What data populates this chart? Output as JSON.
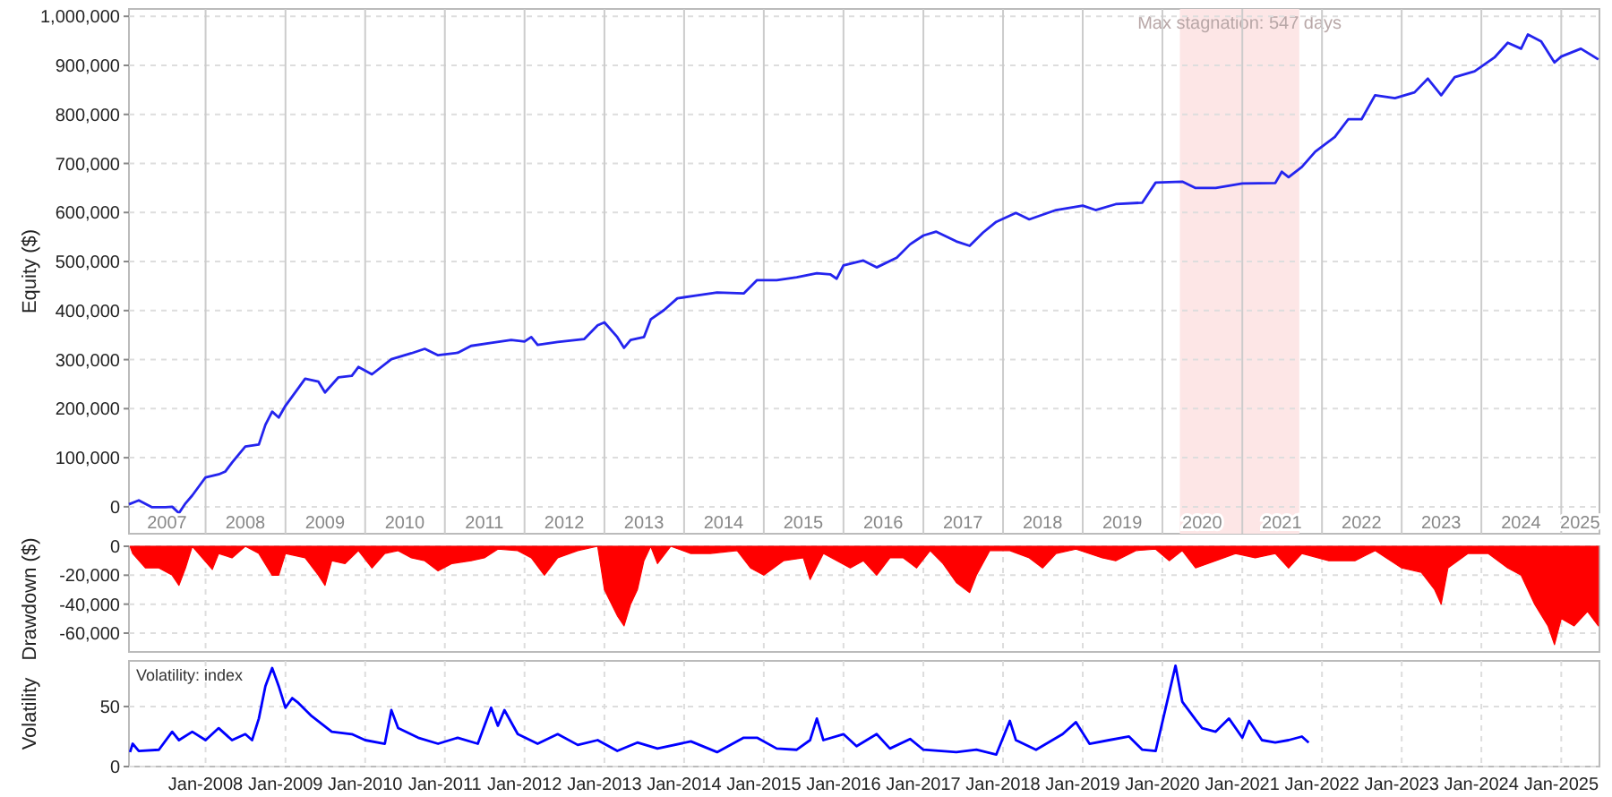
{
  "chart_data": [
    {
      "type": "line",
      "ylabel": "Equity ($)",
      "xlim": [
        "2007-01-15",
        "2025-06-25"
      ],
      "ylim": [
        -55000,
        1015000
      ],
      "yticks": [
        {
          "value": 0,
          "label": "0"
        },
        {
          "value": 100000,
          "label": "100,000"
        },
        {
          "value": 200000,
          "label": "200,000"
        },
        {
          "value": 300000,
          "label": "300,000"
        },
        {
          "value": 400000,
          "label": "400,000"
        },
        {
          "value": 500000,
          "label": "500,000"
        },
        {
          "value": 600000,
          "label": "600,000"
        },
        {
          "value": 700000,
          "label": "700,000"
        },
        {
          "value": 800000,
          "label": "800,000"
        },
        {
          "value": 900000,
          "label": "900,000"
        },
        {
          "value": 1000000,
          "label": "1,000,000"
        }
      ],
      "xticks": [
        {
          "value": "2008-01-01",
          "label": null
        },
        {
          "value": "2009-01-01",
          "label": null
        },
        {
          "value": "2010-01-01",
          "label": null
        },
        {
          "value": "2011-01-01",
          "label": null
        },
        {
          "value": "2012-01-01",
          "label": null
        },
        {
          "value": "2013-01-01",
          "label": null
        },
        {
          "value": "2014-01-01",
          "label": null
        },
        {
          "value": "2015-01-01",
          "label": null
        },
        {
          "value": "2016-01-01",
          "label": null
        },
        {
          "value": "2017-01-01",
          "label": null
        },
        {
          "value": "2018-01-01",
          "label": null
        },
        {
          "value": "2019-01-01",
          "label": null
        },
        {
          "value": "2020-01-01",
          "label": null
        },
        {
          "value": "2021-01-01",
          "label": null
        },
        {
          "value": "2022-01-01",
          "label": null
        },
        {
          "value": "2023-01-01",
          "label": null
        },
        {
          "value": "2024-01-01",
          "label": null
        },
        {
          "value": "2025-01-01",
          "label": null
        },
        {
          "value": "2007-07-08",
          "label": "2007"
        },
        {
          "value": "2008-07-01",
          "label": "2008"
        },
        {
          "value": "2009-07-01",
          "label": "2009"
        },
        {
          "value": "2010-07-01",
          "label": "2010"
        },
        {
          "value": "2011-07-01",
          "label": "2011"
        },
        {
          "value": "2012-07-01",
          "label": "2012"
        },
        {
          "value": "2013-07-01",
          "label": "2013"
        },
        {
          "value": "2014-07-01",
          "label": "2014"
        },
        {
          "value": "2015-07-01",
          "label": "2015"
        },
        {
          "value": "2016-07-01",
          "label": "2016"
        },
        {
          "value": "2017-07-01",
          "label": "2017"
        },
        {
          "value": "2018-07-01",
          "label": "2018"
        },
        {
          "value": "2019-07-01",
          "label": "2019"
        },
        {
          "value": "2020-07-01",
          "label": "2020"
        },
        {
          "value": "2021-07-01",
          "label": "2021"
        },
        {
          "value": "2022-07-01",
          "label": "2022"
        },
        {
          "value": "2023-07-01",
          "label": "2023"
        },
        {
          "value": "2024-07-01",
          "label": "2024"
        },
        {
          "value": "2025-03-28",
          "label": "2025"
        }
      ],
      "grid": true,
      "bands": [
        {
          "axis": "x",
          "from": "2020-03-21",
          "to": "2021-09-19",
          "label": "Max stagnation: 547 days",
          "color": "#fde6e6"
        }
      ],
      "series": [
        {
          "color": "#2424ee",
          "x": [
            "2007-01-15",
            "2007-03-01",
            "2007-05-01",
            "2007-07-01",
            "2007-08-01",
            "2007-09-01",
            "2007-10-01",
            "2007-11-01",
            "2008-01-01",
            "2008-03-01",
            "2008-04-01",
            "2008-05-01",
            "2008-07-01",
            "2008-09-01",
            "2008-10-01",
            "2008-11-01",
            "2008-12-01",
            "2009-01-01",
            "2009-03-01",
            "2009-04-01",
            "2009-06-01",
            "2009-07-01",
            "2009-09-01",
            "2009-11-01",
            "2009-12-01",
            "2010-02-01",
            "2010-05-01",
            "2010-08-01",
            "2010-10-01",
            "2010-12-01",
            "2011-03-01",
            "2011-05-01",
            "2011-08-01",
            "2011-11-01",
            "2012-01-01",
            "2012-02-01",
            "2012-03-01",
            "2012-06-01",
            "2012-10-01",
            "2012-12-01",
            "2013-01-01",
            "2013-03-01",
            "2013-04-01",
            "2013-05-01",
            "2013-07-01",
            "2013-08-01",
            "2013-10-01",
            "2013-12-01",
            "2014-03-01",
            "2014-06-01",
            "2014-10-01",
            "2014-12-01",
            "2015-03-01",
            "2015-06-01",
            "2015-09-01",
            "2015-11-01",
            "2015-12-01",
            "2016-01-01",
            "2016-04-01",
            "2016-06-01",
            "2016-09-01",
            "2016-11-01",
            "2017-01-01",
            "2017-03-01",
            "2017-06-01",
            "2017-08-01",
            "2017-10-01",
            "2017-12-01",
            "2018-03-01",
            "2018-05-01",
            "2018-09-01",
            "2019-01-01",
            "2019-03-01",
            "2019-06-01",
            "2019-10-01",
            "2019-12-01",
            "2020-04-01",
            "2020-06-01",
            "2020-09-01",
            "2021-01-01",
            "2021-06-01",
            "2021-07-01",
            "2021-08-01",
            "2021-10-01",
            "2021-12-01",
            "2022-03-01",
            "2022-05-01",
            "2022-07-01",
            "2022-09-01",
            "2022-12-01",
            "2023-03-01",
            "2023-05-01",
            "2023-07-01",
            "2023-09-01",
            "2023-12-01",
            "2024-03-01",
            "2024-05-01",
            "2024-07-01",
            "2024-08-01",
            "2024-10-01",
            "2024-12-01",
            "2025-01-01",
            "2025-04-01",
            "2025-06-20"
          ],
          "values": [
            5000,
            13000,
            -1000,
            -1000,
            0,
            -13000,
            7000,
            23000,
            60000,
            66000,
            72000,
            90000,
            123000,
            127000,
            167000,
            194000,
            182000,
            206000,
            242000,
            261000,
            255000,
            233000,
            264000,
            267000,
            285000,
            270000,
            301000,
            313000,
            322000,
            309000,
            314000,
            328000,
            334000,
            340000,
            337000,
            346000,
            330000,
            336000,
            342000,
            370000,
            376000,
            346000,
            324000,
            340000,
            346000,
            382000,
            401000,
            425000,
            431000,
            437000,
            435000,
            462000,
            462000,
            468000,
            476000,
            474000,
            465000,
            492000,
            502000,
            488000,
            508000,
            535000,
            553000,
            561000,
            541000,
            532000,
            559000,
            581000,
            599000,
            586000,
            605000,
            614000,
            605000,
            617000,
            620000,
            661000,
            663000,
            650000,
            650000,
            659000,
            660000,
            683000,
            672000,
            693000,
            724000,
            754000,
            790000,
            790000,
            839000,
            833000,
            845000,
            873000,
            839000,
            876000,
            888000,
            916000,
            946000,
            934000,
            963000,
            949000,
            906000,
            918000,
            934000,
            912000
          ]
        }
      ]
    },
    {
      "type": "area",
      "ylabel": "Drawdown ($)",
      "xlim": [
        "2007-01-15",
        "2025-06-25"
      ],
      "ylim": [
        -73000,
        0
      ],
      "yticks": [
        {
          "value": 0,
          "label": "0"
        },
        {
          "value": -20000,
          "label": "-20,000"
        },
        {
          "value": -40000,
          "label": "-40,000"
        },
        {
          "value": -60000,
          "label": "-60,000"
        }
      ],
      "xticks": [
        {
          "value": "2008-01-01",
          "label": null
        },
        {
          "value": "2009-01-01",
          "label": null
        },
        {
          "value": "2010-01-01",
          "label": null
        },
        {
          "value": "2011-01-01",
          "label": null
        },
        {
          "value": "2012-01-01",
          "label": null
        },
        {
          "value": "2013-01-01",
          "label": null
        },
        {
          "value": "2014-01-01",
          "label": null
        },
        {
          "value": "2015-01-01",
          "label": null
        },
        {
          "value": "2016-01-01",
          "label": null
        },
        {
          "value": "2017-01-01",
          "label": null
        },
        {
          "value": "2018-01-01",
          "label": null
        },
        {
          "value": "2019-01-01",
          "label": null
        },
        {
          "value": "2020-01-01",
          "label": null
        },
        {
          "value": "2021-01-01",
          "label": null
        },
        {
          "value": "2022-01-01",
          "label": null
        },
        {
          "value": "2023-01-01",
          "label": null
        },
        {
          "value": "2024-01-01",
          "label": null
        },
        {
          "value": "2025-01-01",
          "label": null
        }
      ],
      "tick_labels": "y",
      "grid": true,
      "series": [
        {
          "color": "#ff0000",
          "x": [
            "2007-01-20",
            "2007-02-01",
            "2007-04-01",
            "2007-06-01",
            "2007-08-01",
            "2007-09-01",
            "2007-10-01",
            "2007-11-01",
            "2008-02-01",
            "2008-03-01",
            "2008-05-01",
            "2008-07-01",
            "2008-09-01",
            "2008-11-01",
            "2008-12-01",
            "2009-01-01",
            "2009-04-01",
            "2009-06-01",
            "2009-07-01",
            "2009-08-01",
            "2009-10-01",
            "2009-12-01",
            "2010-02-01",
            "2010-04-01",
            "2010-06-01",
            "2010-08-01",
            "2010-10-01",
            "2010-12-01",
            "2011-02-01",
            "2011-05-01",
            "2011-07-01",
            "2011-09-01",
            "2011-12-01",
            "2012-02-01",
            "2012-04-01",
            "2012-06-01",
            "2012-09-01",
            "2012-12-01",
            "2013-01-01",
            "2013-03-01",
            "2013-04-01",
            "2013-05-01",
            "2013-06-01",
            "2013-07-01",
            "2013-08-01",
            "2013-09-01",
            "2013-11-01",
            "2014-02-01",
            "2014-05-01",
            "2014-09-01",
            "2014-11-01",
            "2015-01-01",
            "2015-04-01",
            "2015-07-01",
            "2015-08-01",
            "2015-10-01",
            "2016-02-01",
            "2016-04-01",
            "2016-06-01",
            "2016-08-01",
            "2016-10-01",
            "2016-12-01",
            "2017-02-01",
            "2017-04-01",
            "2017-06-01",
            "2017-08-01",
            "2017-09-01",
            "2017-11-01",
            "2018-02-01",
            "2018-05-01",
            "2018-07-01",
            "2018-09-01",
            "2018-12-01",
            "2019-04-01",
            "2019-06-01",
            "2019-09-01",
            "2019-12-01",
            "2020-02-01",
            "2020-04-01",
            "2020-06-01",
            "2020-09-01",
            "2020-12-01",
            "2021-03-01",
            "2021-06-01",
            "2021-08-01",
            "2021-10-01",
            "2022-02-01",
            "2022-06-01",
            "2022-09-01",
            "2023-01-01",
            "2023-04-01",
            "2023-06-01",
            "2023-07-01",
            "2023-08-01",
            "2023-11-01",
            "2024-02-01",
            "2024-05-01",
            "2024-07-01",
            "2024-09-01",
            "2024-11-01",
            "2024-12-01",
            "2025-01-01",
            "2025-03-01",
            "2025-05-01",
            "2025-06-20"
          ],
          "values": [
            0,
            -5000,
            -15000,
            -15000,
            -20000,
            -27000,
            -15000,
            0,
            -16000,
            -5000,
            -8000,
            0,
            -5000,
            -20000,
            -20000,
            -5000,
            -8000,
            -20000,
            -27000,
            -10000,
            -12000,
            -3000,
            -15000,
            -5000,
            -3000,
            -8000,
            -10000,
            -17000,
            -12000,
            -10000,
            -8000,
            -2000,
            -3000,
            -8000,
            -20000,
            -8000,
            -3000,
            0,
            -30000,
            -48000,
            -55000,
            -40000,
            -30000,
            -10000,
            0,
            -12000,
            0,
            -5000,
            -5000,
            -3000,
            -15000,
            -20000,
            -10000,
            -8000,
            -23000,
            -5000,
            -15000,
            -10000,
            -20000,
            -8000,
            -8000,
            -15000,
            -3000,
            -12000,
            -25000,
            -32000,
            -20000,
            -3000,
            -3000,
            -8000,
            -15000,
            -5000,
            -2000,
            -8000,
            -10000,
            -3000,
            -2000,
            -10000,
            -3000,
            -15000,
            -10000,
            -5000,
            -8000,
            -5000,
            -15000,
            -5000,
            -10000,
            -10000,
            -3000,
            -15000,
            -18000,
            -30000,
            -40000,
            -15000,
            -5000,
            -5000,
            -15000,
            -20000,
            -40000,
            -55000,
            -68000,
            -50000,
            -55000,
            -45000,
            -55000
          ]
        }
      ]
    },
    {
      "type": "line",
      "ylabel": "Volatility",
      "xlim": [
        "2007-01-15",
        "2025-06-25"
      ],
      "ylim": [
        0,
        88
      ],
      "yticks": [
        {
          "value": 0,
          "label": "0"
        },
        {
          "value": 50,
          "label": "50"
        }
      ],
      "xticks": [
        {
          "value": "2008-01-01",
          "label": "Jan-2008"
        },
        {
          "value": "2009-01-01",
          "label": "Jan-2009"
        },
        {
          "value": "2010-01-01",
          "label": "Jan-2010"
        },
        {
          "value": "2011-01-01",
          "label": "Jan-2011"
        },
        {
          "value": "2012-01-01",
          "label": "Jan-2012"
        },
        {
          "value": "2013-01-01",
          "label": "Jan-2013"
        },
        {
          "value": "2014-01-01",
          "label": "Jan-2014"
        },
        {
          "value": "2015-01-01",
          "label": "Jan-2015"
        },
        {
          "value": "2016-01-01",
          "label": "Jan-2016"
        },
        {
          "value": "2017-01-01",
          "label": "Jan-2017"
        },
        {
          "value": "2018-01-01",
          "label": "Jan-2018"
        },
        {
          "value": "2019-01-01",
          "label": "Jan-2019"
        },
        {
          "value": "2020-01-01",
          "label": "Jan-2020"
        },
        {
          "value": "2021-01-01",
          "label": "Jan-2021"
        },
        {
          "value": "2022-01-01",
          "label": "Jan-2022"
        },
        {
          "value": "2023-01-01",
          "label": "Jan-2023"
        },
        {
          "value": "2024-01-01",
          "label": "Jan-2024"
        },
        {
          "value": "2025-01-01",
          "label": "Jan-2025"
        }
      ],
      "grid": true,
      "annotations": [
        "Volatility: index"
      ],
      "series": [
        {
          "color": "#0000ff",
          "x": [
            "2007-01-20",
            "2007-02-01",
            "2007-03-01",
            "2007-06-01",
            "2007-08-01",
            "2007-09-01",
            "2007-11-01",
            "2008-01-01",
            "2008-03-01",
            "2008-05-01",
            "2008-07-01",
            "2008-08-01",
            "2008-09-01",
            "2008-10-01",
            "2008-11-01",
            "2008-12-01",
            "2009-01-01",
            "2009-02-01",
            "2009-03-01",
            "2009-05-01",
            "2009-08-01",
            "2009-11-01",
            "2010-01-01",
            "2010-04-01",
            "2010-05-01",
            "2010-06-01",
            "2010-09-01",
            "2010-12-01",
            "2011-03-01",
            "2011-06-01",
            "2011-08-01",
            "2011-09-01",
            "2011-10-01",
            "2011-12-01",
            "2012-03-01",
            "2012-06-01",
            "2012-09-01",
            "2012-12-01",
            "2013-03-01",
            "2013-06-01",
            "2013-09-01",
            "2014-02-01",
            "2014-06-01",
            "2014-10-01",
            "2014-12-01",
            "2015-03-01",
            "2015-06-01",
            "2015-08-01",
            "2015-09-01",
            "2015-10-01",
            "2016-01-01",
            "2016-03-01",
            "2016-06-01",
            "2016-08-01",
            "2016-11-01",
            "2017-01-01",
            "2017-06-01",
            "2017-09-01",
            "2017-12-01",
            "2018-02-01",
            "2018-03-01",
            "2018-06-01",
            "2018-10-01",
            "2018-12-01",
            "2019-02-01",
            "2019-05-01",
            "2019-08-01",
            "2019-10-01",
            "2019-12-01",
            "2020-03-01",
            "2020-04-01",
            "2020-06-01",
            "2020-07-01",
            "2020-09-01",
            "2020-11-01",
            "2021-01-01",
            "2021-02-01",
            "2021-04-01",
            "2021-06-01",
            "2021-08-01",
            "2021-10-01",
            "2021-11-01"
          ],
          "values": [
            12,
            19,
            13,
            14,
            29,
            22,
            29,
            22,
            32,
            22,
            27,
            22,
            40,
            67,
            82,
            67,
            49,
            57,
            53,
            42,
            29,
            27,
            22,
            19,
            47,
            32,
            24,
            19,
            24,
            19,
            49,
            34,
            47,
            27,
            19,
            27,
            18,
            22,
            13,
            20,
            15,
            21,
            12,
            24,
            24,
            15,
            14,
            22,
            40,
            22,
            27,
            17,
            27,
            15,
            23,
            14,
            12,
            14,
            10,
            38,
            22,
            14,
            27,
            37,
            19,
            22,
            25,
            14,
            13,
            84,
            54,
            39,
            32,
            29,
            40,
            24,
            38,
            22,
            20,
            22,
            25,
            20
          ]
        }
      ]
    }
  ]
}
